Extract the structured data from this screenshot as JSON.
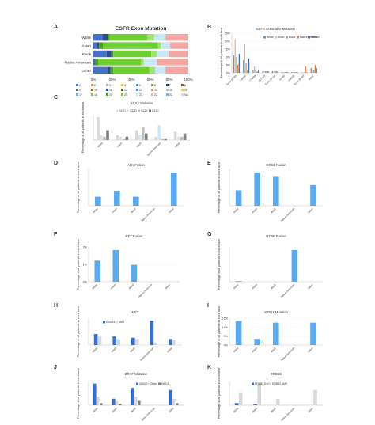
{
  "chart_data": [
    {
      "id": "A",
      "type": "bar",
      "orientation": "horizontal-stacked-percent",
      "title": "EGFR Exon Mutation",
      "categories": [
        "White",
        "Asian",
        "Black",
        "Native American",
        "Other"
      ],
      "xticks": [
        "0%",
        "20%",
        "40%",
        "60%",
        "80%",
        "100%"
      ],
      "legend": [
        "1",
        "2",
        "3",
        "4",
        "5",
        "6",
        "7",
        "8",
        "9",
        "10",
        "11",
        "12",
        "13",
        "14",
        "15",
        "16",
        "17",
        "18",
        "19",
        "20",
        "21",
        "22",
        "23",
        "NA"
      ],
      "series": [
        {
          "name": "1",
          "color": "#4472c4",
          "values": [
            10,
            3,
            14,
            1,
            15
          ]
        },
        {
          "name": "2",
          "color": "#2e4a8a",
          "values": [
            5,
            3,
            5,
            1,
            3
          ]
        },
        {
          "name": "18",
          "color": "#4c9a2a",
          "values": [
            2,
            4,
            2,
            3,
            3
          ]
        },
        {
          "name": "19",
          "color": "#6ccf2e",
          "values": [
            40,
            58,
            40,
            45,
            38
          ]
        },
        {
          "name": "20",
          "color": "#9fe46a",
          "values": [
            7,
            3,
            6,
            3,
            6
          ]
        },
        {
          "name": "21",
          "color": "#c9e7f5",
          "values": [
            12,
            10,
            13,
            14,
            11
          ]
        },
        {
          "name": "NA",
          "color": "#f4a6a0",
          "values": [
            24,
            19,
            20,
            33,
            24
          ]
        }
      ]
    },
    {
      "id": "B",
      "type": "bar",
      "title": "EGFR Actionable Mutation",
      "ylabel": "Percentage of all patients in each race",
      "yticks": [
        "0%",
        "5%",
        "10%",
        "15%",
        "20%",
        "25%"
      ],
      "ylim": [
        0,
        25
      ],
      "categories": [
        "Exon 19 del",
        "L858R",
        "T790M",
        "G719X",
        "Exon 20 ins",
        "S768I",
        "L861Q",
        "Exon 18 del",
        "Other"
      ],
      "legend": [
        "White",
        "Asian",
        "Black",
        "Native American",
        "Other"
      ],
      "series": [
        {
          "name": "White",
          "color": "#5b9bd5",
          "values": [
            11,
            8,
            2,
            1,
            1,
            0.5,
            0.5,
            0.3,
            3
          ]
        },
        {
          "name": "Asian",
          "color": "#f4b183",
          "values": [
            21,
            18,
            4,
            1,
            1,
            0.5,
            0.5,
            0.3,
            2
          ]
        },
        {
          "name": "Black",
          "color": "#a5a5a5",
          "values": [
            10,
            6,
            2,
            1,
            1,
            0.5,
            0.5,
            0.3,
            2
          ]
        },
        {
          "name": "Native American",
          "color": "#ed7d31",
          "values": [
            5,
            2,
            1,
            1,
            1,
            0.5,
            0.5,
            4,
            5
          ]
        },
        {
          "name": "Other",
          "color": "#4472c4",
          "values": [
            12,
            9,
            2,
            1,
            1,
            0.5,
            0.5,
            0.3,
            3
          ]
        }
      ]
    },
    {
      "id": "C",
      "type": "bar",
      "title": "KRAS Mutation",
      "ylabel": "Percentage of all patients in each race",
      "categories": [
        "White",
        "Asian",
        "Black",
        "Native American",
        "Other"
      ],
      "legend": [
        "G12C",
        "G12D",
        "G12V",
        "G13C"
      ],
      "series": [
        {
          "name": "G12C",
          "color": "#d9d9d9",
          "values": [
            14,
            3,
            6,
            2,
            5
          ]
        },
        {
          "name": "G12D",
          "color": "#cfe8f7",
          "values": [
            3,
            2,
            3,
            9,
            2
          ]
        },
        {
          "name": "G12V",
          "color": "#bfbfbf",
          "values": [
            2,
            1,
            8,
            1,
            2
          ]
        },
        {
          "name": "G13C",
          "color": "#7f7f7f",
          "values": [
            6,
            2,
            4,
            1,
            4
          ]
        }
      ]
    },
    {
      "id": "D",
      "type": "bar",
      "title": "ALK Fusion",
      "ylabel": "Percentage of all patients in each race",
      "categories": [
        "White",
        "Asian",
        "Black",
        "Native American",
        "Other"
      ],
      "series": [
        {
          "name": "",
          "color": "#5aaaf0",
          "values": [
            1.5,
            2.5,
            1.5,
            0,
            5.5
          ]
        }
      ]
    },
    {
      "id": "E",
      "type": "bar",
      "title": "ROS1 Fusion",
      "ylabel": "Percentage of all patients in each race",
      "categories": [
        "White",
        "Asian",
        "Black",
        "Native American",
        "Other"
      ],
      "series": [
        {
          "name": "",
          "color": "#5aaaf0",
          "values": [
            1.5,
            3.2,
            2.8,
            0,
            2
          ]
        }
      ]
    },
    {
      "id": "F",
      "type": "bar",
      "title": "RET Fusion",
      "ylabel": "Percentage of all patients in each race",
      "yticks": [
        "0%",
        "1%",
        "2%"
      ],
      "categories": [
        "White",
        "Asian",
        "Black",
        "Native American",
        "Other"
      ],
      "series": [
        {
          "name": "",
          "color": "#5aaaf0",
          "values": [
            1,
            1.5,
            0.8,
            0,
            0
          ]
        }
      ]
    },
    {
      "id": "G",
      "type": "bar",
      "title": "NTRK Fusion",
      "ylabel": "Percentage of all patients in each race",
      "categories": [
        "White",
        "Asian",
        "Black",
        "Native American",
        "Other"
      ],
      "series": [
        {
          "name": "",
          "color": "#5aaaf0",
          "values": [
            0.2,
            0,
            0,
            10,
            0
          ]
        }
      ]
    },
    {
      "id": "H",
      "type": "bar",
      "title": "MET",
      "ylabel": "Percentage of all patients in each race",
      "categories": [
        "White",
        "Asian",
        "Black",
        "Native American",
        "Other"
      ],
      "legend": [
        "Exon14",
        "MET"
      ],
      "series": [
        {
          "name": "Exon14",
          "color": "#2f6fd6",
          "values": [
            4.5,
            3.5,
            3,
            10,
            2.5
          ]
        },
        {
          "name": "MET",
          "color": "#d9d9d9",
          "values": [
            3.5,
            2.5,
            2.5,
            1,
            2
          ]
        }
      ]
    },
    {
      "id": "I",
      "type": "bar",
      "title": "STK11 Mutation",
      "ylabel": "Percentage of all patients in each race",
      "yticks": [
        "0%",
        "5%",
        "10%",
        "15%"
      ],
      "categories": [
        "White",
        "Asian",
        "Black",
        "Native American",
        "Other"
      ],
      "series": [
        {
          "name": "",
          "color": "#5aaaf0",
          "values": [
            12,
            3,
            11,
            0,
            11
          ]
        }
      ]
    },
    {
      "id": "J",
      "type": "bar",
      "title": "BRAF Mutation",
      "ylabel": "Percentage of all patients in each race",
      "categories": [
        "White",
        "Asian",
        "Black",
        "Native American",
        "Other"
      ],
      "legend": [
        "V600E",
        "Other",
        "K601E"
      ],
      "series": [
        {
          "name": "V600E",
          "color": "#2f6fd6",
          "values": [
            5,
            1.5,
            4,
            0,
            3.5
          ]
        },
        {
          "name": "Other",
          "color": "#d9d9d9",
          "values": [
            2,
            1,
            2,
            0,
            1.5
          ]
        },
        {
          "name": "K601E",
          "color": "#7f7f7f",
          "values": [
            0.5,
            0.3,
            1,
            0,
            0.5
          ]
        }
      ]
    },
    {
      "id": "K",
      "type": "bar",
      "title": "ERBB2",
      "ylabel": "Percentage of all patients in each race",
      "categories": [
        "White",
        "Asian",
        "Black",
        "Native American",
        "Other"
      ],
      "legend": [
        "ERBB2 Ex20",
        "ERBB2 AMP"
      ],
      "series": [
        {
          "name": "ERBB2 Ex20",
          "color": "#2f6fd6",
          "values": [
            1,
            0.5,
            0,
            0,
            0
          ]
        },
        {
          "name": "ERBB2 AMP",
          "color": "#d9d9d9",
          "values": [
            6,
            10,
            3,
            0,
            7
          ]
        }
      ]
    }
  ]
}
